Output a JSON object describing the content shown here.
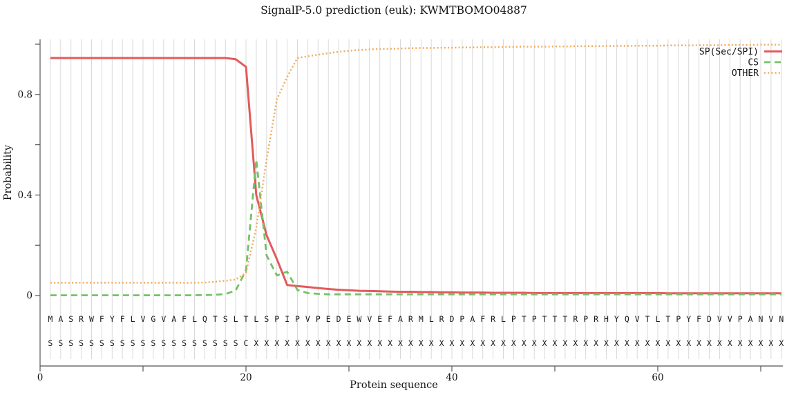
{
  "title": "SignalP-5.0 prediction (euk):  KWMTBOMO04887",
  "axes": {
    "ylabel": "Probability",
    "xlabel": "Protein sequence",
    "y_major_ticks": [
      {
        "value": 0.0,
        "label": "0"
      },
      {
        "value": 0.4,
        "label": "0.4"
      },
      {
        "value": 0.8,
        "label": "0.8"
      }
    ],
    "y_minor_ticks": [
      0.2,
      0.6,
      1.0
    ],
    "x_major_ticks": [
      {
        "value": 0,
        "label": "0"
      },
      {
        "value": 20,
        "label": "20"
      },
      {
        "value": 40,
        "label": "40"
      },
      {
        "value": 60,
        "label": "60"
      }
    ],
    "x_minor_ticks": [
      10,
      30,
      50,
      70
    ]
  },
  "legend": [
    {
      "label": "SP(Sec/SPI)",
      "style": "solid",
      "color": "#e25a5a"
    },
    {
      "label": "CS",
      "style": "dashed",
      "color": "#74c167"
    },
    {
      "label": "OTHER",
      "style": "dotted",
      "color": "#f2a95c"
    }
  ],
  "colors": {
    "sp": "#e25a5a",
    "cs": "#74c167",
    "other": "#f2a95c",
    "grid": "#d9d9d9",
    "axis": "#555555",
    "text": "#111111",
    "letters": "#1a1a1a"
  },
  "sequence": {
    "residues": "MASRWFYFLVGVAFLQTSLTLSPIPVPEDEWVEFARMLRDPAFRLPTPTTTRPRHYQVTLTPYFDVVPANVN",
    "annotation": "SSSSSSSSSSSSSSSSSSSCXXXXXXXXXXXXXXXXXXXXXXXXXXXXXXXXXXXXXXXXXXXXXXXXXXXX"
  },
  "chart_data": {
    "type": "line",
    "title": "SignalP-5.0 prediction (euk):  KWMTBOMO04887",
    "xlabel": "Protein sequence",
    "ylabel": "Probability",
    "xlim": [
      0,
      73
    ],
    "ylim": [
      0,
      1.0
    ],
    "grid": "vertical-per-residue",
    "legend_position": "top-right",
    "x": [
      1,
      2,
      3,
      4,
      5,
      6,
      7,
      8,
      9,
      10,
      11,
      12,
      13,
      14,
      15,
      16,
      17,
      18,
      19,
      20,
      21,
      22,
      23,
      24,
      25,
      26,
      27,
      28,
      29,
      30,
      31,
      32,
      33,
      34,
      35,
      36,
      37,
      38,
      39,
      40,
      41,
      42,
      43,
      44,
      45,
      46,
      47,
      48,
      49,
      50,
      51,
      52,
      53,
      54,
      55,
      56,
      57,
      58,
      59,
      60,
      61,
      62,
      63,
      64,
      65,
      66,
      67,
      68,
      69,
      70,
      71,
      72
    ],
    "series": [
      {
        "name": "SP(Sec/SPI)",
        "values": [
          0.945,
          0.945,
          0.945,
          0.945,
          0.945,
          0.945,
          0.945,
          0.945,
          0.945,
          0.945,
          0.945,
          0.945,
          0.945,
          0.945,
          0.945,
          0.945,
          0.945,
          0.945,
          0.94,
          0.91,
          0.4,
          0.24,
          0.145,
          0.042,
          0.038,
          0.034,
          0.03,
          0.026,
          0.023,
          0.021,
          0.019,
          0.018,
          0.017,
          0.016,
          0.015,
          0.015,
          0.014,
          0.014,
          0.013,
          0.013,
          0.012,
          0.012,
          0.012,
          0.011,
          0.011,
          0.011,
          0.011,
          0.01,
          0.01,
          0.01,
          0.01,
          0.01,
          0.01,
          0.01,
          0.01,
          0.01,
          0.01,
          0.01,
          0.01,
          0.01,
          0.009,
          0.009,
          0.009,
          0.009,
          0.009,
          0.009,
          0.009,
          0.009,
          0.009,
          0.009,
          0.009,
          0.009
        ]
      },
      {
        "name": "CS",
        "values": [
          0.001,
          0.001,
          0.001,
          0.001,
          0.001,
          0.001,
          0.001,
          0.001,
          0.001,
          0.001,
          0.001,
          0.001,
          0.001,
          0.001,
          0.001,
          0.002,
          0.003,
          0.006,
          0.02,
          0.1,
          0.54,
          0.16,
          0.08,
          0.095,
          0.022,
          0.01,
          0.007,
          0.005,
          0.005,
          0.005,
          0.005,
          0.005,
          0.005,
          0.005,
          0.005,
          0.005,
          0.005,
          0.005,
          0.005,
          0.005,
          0.005,
          0.005,
          0.005,
          0.005,
          0.005,
          0.005,
          0.005,
          0.005,
          0.005,
          0.005,
          0.005,
          0.005,
          0.005,
          0.005,
          0.005,
          0.005,
          0.005,
          0.005,
          0.005,
          0.005,
          0.005,
          0.005,
          0.005,
          0.005,
          0.005,
          0.005,
          0.005,
          0.005,
          0.005,
          0.005,
          0.005,
          0.005
        ]
      },
      {
        "name": "OTHER",
        "values": [
          0.051,
          0.051,
          0.051,
          0.051,
          0.051,
          0.051,
          0.051,
          0.051,
          0.051,
          0.051,
          0.051,
          0.051,
          0.051,
          0.051,
          0.051,
          0.052,
          0.055,
          0.059,
          0.064,
          0.09,
          0.27,
          0.54,
          0.78,
          0.87,
          0.945,
          0.952,
          0.958,
          0.964,
          0.97,
          0.974,
          0.977,
          0.979,
          0.981,
          0.982,
          0.983,
          0.984,
          0.985,
          0.985,
          0.986,
          0.986,
          0.987,
          0.987,
          0.988,
          0.988,
          0.989,
          0.989,
          0.99,
          0.99,
          0.99,
          0.991,
          0.991,
          0.992,
          0.992,
          0.992,
          0.993,
          0.993,
          0.993,
          0.994,
          0.994,
          0.994,
          0.995,
          0.995,
          0.995,
          0.996,
          0.996,
          0.996,
          0.997,
          0.997,
          0.997,
          0.998,
          0.998,
          0.998
        ]
      }
    ]
  }
}
